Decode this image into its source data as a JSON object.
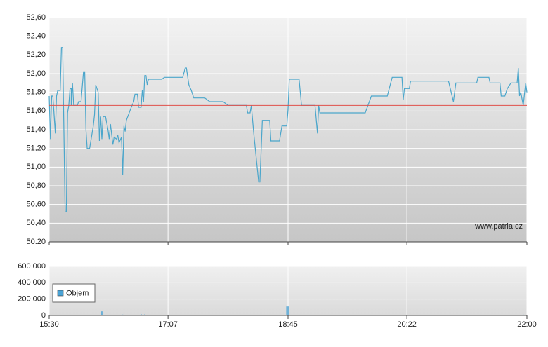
{
  "chart_data": [
    {
      "type": "line",
      "watermark": "www.patria.cz",
      "color": "#4ba6cb",
      "hline": 51.66,
      "hline_color": "#e0504a",
      "xlim": [
        "15:30",
        "22:00"
      ],
      "ylim": [
        50.2,
        52.6
      ],
      "yticks": [
        {
          "value": 50.2,
          "label": "50.20"
        },
        {
          "value": 50.4,
          "label": "50,40"
        },
        {
          "value": 50.6,
          "label": "50,60"
        },
        {
          "value": 50.8,
          "label": "50,80"
        },
        {
          "value": 51.0,
          "label": "51,00"
        },
        {
          "value": 51.2,
          "label": "51,20"
        },
        {
          "value": 51.4,
          "label": "51,40"
        },
        {
          "value": 51.6,
          "label": "51,60"
        },
        {
          "value": 51.8,
          "label": "51,80"
        },
        {
          "value": 52.0,
          "label": "52,00"
        },
        {
          "value": 52.2,
          "label": "52,20"
        },
        {
          "value": 52.4,
          "label": "52,40"
        },
        {
          "value": 52.6,
          "label": "52,60"
        }
      ],
      "grid": true,
      "x": [
        "15:30",
        "15:31",
        "15:32",
        "15:33",
        "15:35",
        "15:36",
        "15:37",
        "15:39",
        "15:40",
        "15:41",
        "15:43",
        "15:44",
        "15:45",
        "15:46",
        "15:47",
        "15:48",
        "15:48",
        "15:49",
        "15:50",
        "15:53",
        "15:54",
        "15:56",
        "15:58",
        "15:59",
        "16:00",
        "16:01",
        "16:03",
        "16:06",
        "16:07",
        "16:08",
        "16:10",
        "16:11",
        "16:12",
        "16:13",
        "16:14",
        "16:16",
        "16:18",
        "16:19",
        "16:20",
        "16:22",
        "16:23",
        "16:25",
        "16:26",
        "16:27",
        "16:29",
        "16:30",
        "16:31",
        "16:32",
        "16:33",
        "16:37",
        "16:39",
        "16:40",
        "16:42",
        "16:43",
        "16:45",
        "16:46",
        "16:47",
        "16:48",
        "16:49",
        "16:50",
        "16:51",
        "17:02",
        "17:04",
        "17:19",
        "17:21",
        "17:22",
        "17:24",
        "17:26",
        "17:28",
        "17:37",
        "17:41",
        "17:52",
        "17:56",
        "18:11",
        "18:12",
        "18:14",
        "18:15",
        "18:17",
        "18:21",
        "18:22",
        "18:24",
        "18:30",
        "18:31",
        "18:38",
        "18:40",
        "18:44",
        "18:45",
        "18:46",
        "18:54",
        "18:56",
        "19:07",
        "19:09",
        "19:10",
        "19:11",
        "19:48",
        "19:53",
        "20:06",
        "20:10",
        "20:18",
        "20:19",
        "20:20",
        "20:24",
        "20:25",
        "20:56",
        "21:00",
        "21:02",
        "21:19",
        "21:20",
        "21:29",
        "21:30",
        "21:38",
        "21:39",
        "21:42",
        "21:44",
        "21:47",
        "21:52",
        "21:53",
        "21:54",
        "21:55",
        "21:57",
        "21:59",
        "22:00"
      ],
      "values": [
        51.76,
        51.3,
        51.76,
        51.76,
        51.36,
        51.76,
        51.82,
        51.82,
        52.28,
        52.28,
        50.52,
        50.52,
        51.58,
        51.66,
        51.84,
        51.84,
        51.66,
        51.9,
        51.66,
        51.66,
        51.7,
        51.7,
        52.02,
        52.02,
        51.4,
        51.2,
        51.2,
        51.44,
        51.56,
        51.88,
        51.8,
        51.28,
        51.54,
        51.3,
        51.54,
        51.54,
        51.4,
        51.3,
        51.46,
        51.24,
        51.32,
        51.3,
        51.34,
        51.26,
        51.32,
        50.92,
        51.44,
        51.38,
        51.5,
        51.64,
        51.7,
        51.78,
        51.78,
        51.64,
        51.64,
        51.82,
        51.7,
        51.98,
        51.98,
        51.88,
        51.94,
        51.94,
        51.96,
        51.96,
        52.06,
        52.06,
        51.88,
        51.82,
        51.74,
        51.74,
        51.7,
        51.7,
        51.66,
        51.66,
        51.58,
        51.58,
        51.66,
        51.36,
        50.84,
        50.84,
        51.5,
        51.5,
        51.28,
        51.28,
        51.44,
        51.44,
        51.62,
        51.94,
        51.94,
        51.66,
        51.66,
        51.36,
        51.66,
        51.58,
        51.58,
        51.76,
        51.76,
        51.96,
        51.96,
        51.72,
        51.84,
        51.84,
        51.92,
        51.92,
        51.7,
        51.9,
        51.9,
        51.96,
        51.96,
        51.9,
        51.9,
        51.76,
        51.76,
        51.84,
        51.9,
        51.9,
        52.06,
        51.76,
        51.8,
        51.66,
        51.9,
        51.8
      ]
    },
    {
      "type": "bar",
      "xlim": [
        "15:30",
        "22:00"
      ],
      "xticks": [
        "15:30",
        "17:07",
        "18:45",
        "20:22",
        "22:00"
      ],
      "ylim": [
        0,
        600000
      ],
      "yticks": [
        0,
        {
          "value": 200000,
          "label": "200 000"
        },
        {
          "value": 400000,
          "label": "400 000"
        },
        {
          "value": 600000,
          "label": "600 000"
        }
      ],
      "grid": true,
      "legend": "upper-left",
      "series": [
        {
          "name": "Objem",
          "color": "#4aa3d6",
          "x": [
            "15:32",
            "15:45",
            "16:13",
            "16:30",
            "16:35",
            "16:45",
            "16:48",
            "17:10",
            "17:40",
            "18:15",
            "18:44",
            "18:45",
            "19:00",
            "19:30",
            "20:00",
            "20:30",
            "21:00",
            "21:30",
            "21:57",
            "22:00"
          ],
          "values": [
            5000,
            8000,
            50000,
            10000,
            8000,
            15000,
            12000,
            5000,
            4000,
            6000,
            110000,
            110000,
            6000,
            5000,
            5000,
            6000,
            5000,
            6000,
            10000,
            8000
          ]
        }
      ]
    }
  ]
}
